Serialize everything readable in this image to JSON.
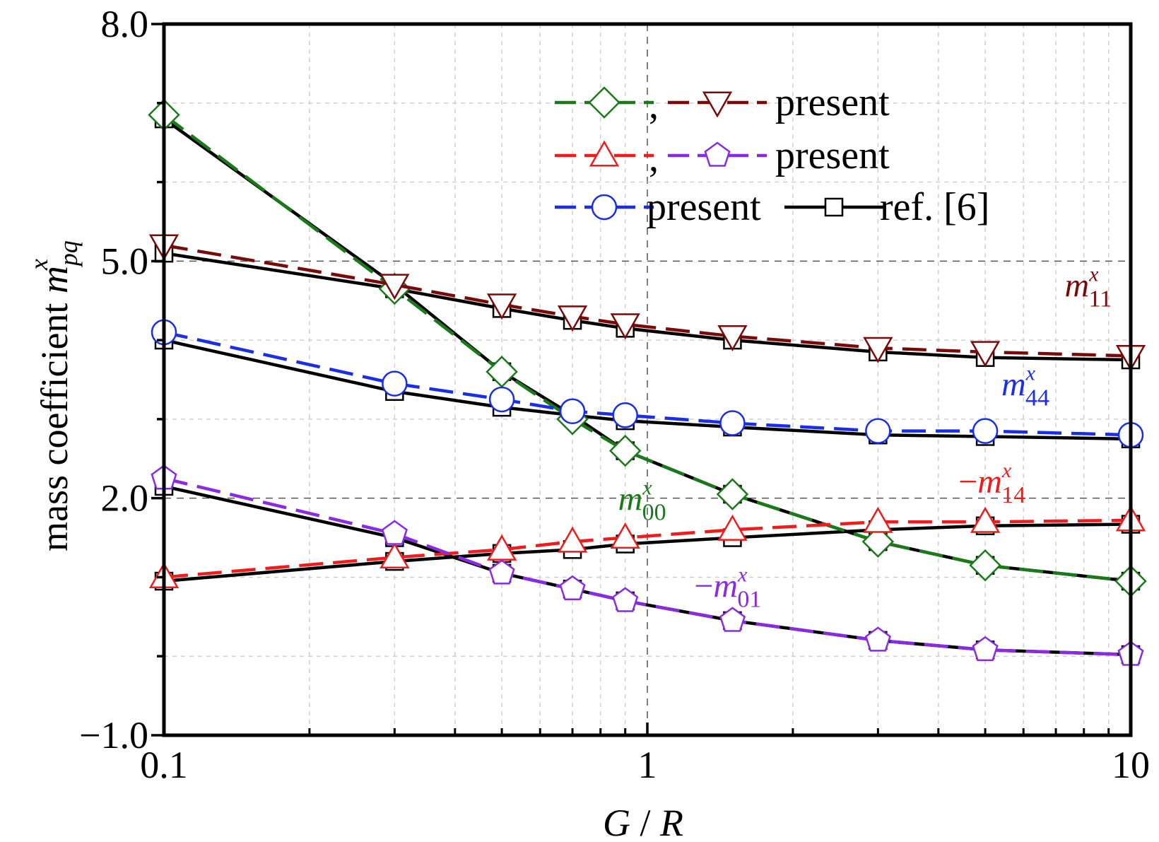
{
  "chart_data": {
    "type": "line",
    "xlabel": {
      "var1": "G",
      "sep": " / ",
      "var2": "R"
    },
    "ylabel": {
      "prefix": "mass coefficient ",
      "var": "m",
      "sub": "pq",
      "sup": "x"
    },
    "xscale": "log",
    "xlim": [
      0.1,
      10
    ],
    "ylim": [
      -1.0,
      8.0
    ],
    "x_ticks": [
      0.1,
      1,
      10
    ],
    "x_tick_labels": [
      "0.1",
      "1",
      "10"
    ],
    "y_ticks": [
      -1.0,
      2.0,
      5.0,
      8.0
    ],
    "y_tick_labels": [
      "−1.0",
      "2.0",
      "5.0",
      "8.0"
    ],
    "grid": true,
    "x": [
      0.1,
      0.3,
      0.5,
      0.7,
      0.9,
      1.5,
      3,
      5,
      10
    ],
    "series": [
      {
        "key": "m00_present",
        "group": "m00",
        "style": "dashed",
        "marker": "diamond",
        "color": "#1a7a1a",
        "values": [
          6.85,
          4.65,
          3.6,
          3.0,
          2.6,
          2.05,
          1.45,
          1.15,
          0.95
        ]
      },
      {
        "key": "m00_ref",
        "group": "m00",
        "style": "solid",
        "marker": "square",
        "color": "#000000",
        "values": [
          6.8,
          4.7,
          3.6,
          3.05,
          2.6,
          2.05,
          1.45,
          1.15,
          0.95
        ]
      },
      {
        "key": "m11_present",
        "group": "m11",
        "style": "dashed",
        "marker": "triangle-down",
        "color": "#7a0a0a",
        "values": [
          5.2,
          4.7,
          4.45,
          4.3,
          4.2,
          4.05,
          3.9,
          3.85,
          3.8
        ]
      },
      {
        "key": "m11_ref",
        "group": "m11",
        "style": "solid",
        "marker": "square",
        "color": "#000000",
        "values": [
          5.1,
          4.65,
          4.4,
          4.25,
          4.15,
          4.0,
          3.85,
          3.78,
          3.75
        ]
      },
      {
        "key": "m44_present",
        "group": "m44",
        "style": "dashed",
        "marker": "circle",
        "color": "#1a2ee6",
        "values": [
          4.1,
          3.45,
          3.25,
          3.1,
          3.05,
          2.95,
          2.85,
          2.85,
          2.8
        ]
      },
      {
        "key": "m44_ref",
        "group": "m44",
        "style": "solid",
        "marker": "square",
        "color": "#000000",
        "values": [
          4.0,
          3.35,
          3.15,
          3.05,
          2.98,
          2.9,
          2.8,
          2.78,
          2.75
        ]
      },
      {
        "key": "m14_present",
        "group": "m14",
        "style": "dashed",
        "marker": "triangle-up",
        "color": "#ee1c1c",
        "values": [
          1.0,
          1.25,
          1.35,
          1.45,
          1.5,
          1.6,
          1.7,
          1.7,
          1.72
        ]
      },
      {
        "key": "m14_ref",
        "group": "m14",
        "style": "solid",
        "marker": "square",
        "color": "#000000",
        "values": [
          0.95,
          1.2,
          1.3,
          1.35,
          1.42,
          1.5,
          1.6,
          1.65,
          1.67
        ]
      },
      {
        "key": "m01_present",
        "group": "m01",
        "style": "dashed",
        "marker": "pentagon",
        "color": "#8a2be2",
        "values": [
          2.25,
          1.55,
          1.05,
          0.85,
          0.7,
          0.45,
          0.2,
          0.08,
          0.02
        ]
      },
      {
        "key": "m01_ref",
        "group": "m01",
        "style": "solid",
        "marker": "square",
        "color": "#000000",
        "values": [
          2.15,
          1.5,
          1.05,
          0.85,
          0.7,
          0.45,
          0.2,
          0.08,
          0.02
        ]
      }
    ],
    "legend": {
      "placement": "top-right",
      "rows": [
        {
          "items": [
            "m00_present",
            "m11_present"
          ],
          "separator": ",",
          "text": "present"
        },
        {
          "items": [
            "m14_present",
            "m01_present"
          ],
          "separator": ",",
          "text": "present"
        },
        {
          "items": [
            "m44_present"
          ],
          "text": "present",
          "extra_item": "m00_ref",
          "extra_text": "ref. [6]"
        }
      ]
    },
    "annotations": [
      {
        "key": "m11",
        "prefix": "",
        "var": "m",
        "sub": "11",
        "sup": "x",
        "color": "#7a0a0a",
        "x": 7.3,
        "y": 4.55
      },
      {
        "key": "m44",
        "prefix": "",
        "var": "m",
        "sub": "44",
        "sup": "x",
        "color": "#1a2ee6",
        "x": 5.4,
        "y": 3.3
      },
      {
        "key": "m00",
        "prefix": "",
        "var": "m",
        "sub": "00",
        "sup": "x",
        "color": "#1a7a1a",
        "x": 0.87,
        "y": 1.85
      },
      {
        "key": "m14",
        "prefix": "−",
        "var": "m",
        "sub": "14",
        "sup": "x",
        "color": "#ee1c1c",
        "x": 4.4,
        "y": 2.07
      },
      {
        "key": "m01",
        "prefix": "−",
        "var": "m",
        "sub": "01",
        "sup": "x",
        "color": "#8a2be2",
        "x": 1.25,
        "y": 0.75
      }
    ]
  }
}
